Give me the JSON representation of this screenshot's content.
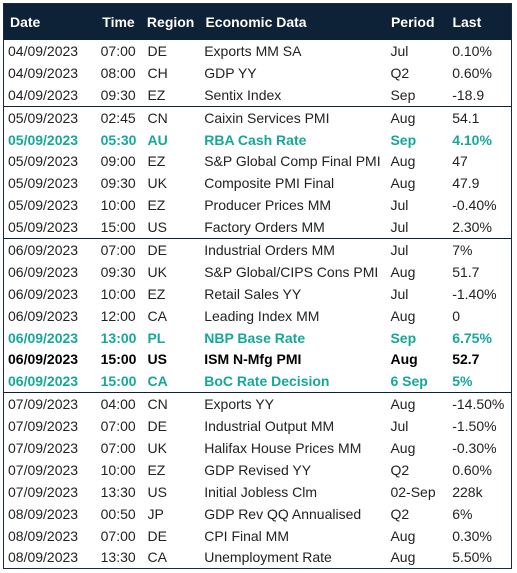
{
  "headers": [
    "Date",
    "Time",
    "Region",
    "Economic Data",
    "Period",
    "Last"
  ],
  "rows": [
    {
      "date": "04/09/2023",
      "time": "07:00",
      "region": "DE",
      "econ": "Exports MM SA",
      "period": "Jul",
      "last": "0.10%",
      "style": "",
      "sep": false
    },
    {
      "date": "04/09/2023",
      "time": "08:00",
      "region": "CH",
      "econ": "GDP YY",
      "period": "Q2",
      "last": "0.60%",
      "style": "",
      "sep": false
    },
    {
      "date": "04/09/2023",
      "time": "09:30",
      "region": "EZ",
      "econ": "Sentix Index",
      "period": "Sep",
      "last": "-18.9",
      "style": "",
      "sep": false
    },
    {
      "date": "05/09/2023",
      "time": "02:45",
      "region": "CN",
      "econ": "Caixin Services PMI",
      "period": "Aug",
      "last": "54.1",
      "style": "",
      "sep": true
    },
    {
      "date": "05/09/2023",
      "time": "05:30",
      "region": "AU",
      "econ": "RBA Cash Rate",
      "period": "Sep",
      "last": "4.10%",
      "style": "green",
      "sep": false
    },
    {
      "date": "05/09/2023",
      "time": "09:00",
      "region": "EZ",
      "econ": "S&P Global Comp Final PMI",
      "period": "Aug",
      "last": "47",
      "style": "",
      "sep": false
    },
    {
      "date": "05/09/2023",
      "time": "09:30",
      "region": "UK",
      "econ": "Composite PMI Final",
      "period": "Aug",
      "last": "47.9",
      "style": "",
      "sep": false
    },
    {
      "date": "05/09/2023",
      "time": "10:00",
      "region": "EZ",
      "econ": "Producer Prices MM",
      "period": "Jul",
      "last": "-0.40%",
      "style": "",
      "sep": false
    },
    {
      "date": "05/09/2023",
      "time": "15:00",
      "region": "US",
      "econ": "Factory Orders MM",
      "period": "Jul",
      "last": "2.30%",
      "style": "",
      "sep": false
    },
    {
      "date": "06/09/2023",
      "time": "07:00",
      "region": "DE",
      "econ": "Industrial Orders MM",
      "period": "Jul",
      "last": "7%",
      "style": "",
      "sep": true
    },
    {
      "date": "06/09/2023",
      "time": "09:30",
      "region": "UK",
      "econ": "S&P Global/CIPS Cons PMI",
      "period": "Aug",
      "last": "51.7",
      "style": "",
      "sep": false
    },
    {
      "date": "06/09/2023",
      "time": "10:00",
      "region": "EZ",
      "econ": "Retail Sales YY",
      "period": "Jul",
      "last": "-1.40%",
      "style": "",
      "sep": false
    },
    {
      "date": "06/09/2023",
      "time": "12:00",
      "region": "CA",
      "econ": "Leading Index MM",
      "period": "Aug",
      "last": "0",
      "style": "",
      "sep": false
    },
    {
      "date": "06/09/2023",
      "time": "13:00",
      "region": "PL",
      "econ": "NBP Base Rate",
      "period": "Sep",
      "last": "6.75%",
      "style": "green",
      "sep": false
    },
    {
      "date": "06/09/2023",
      "time": "15:00",
      "region": "US",
      "econ": "ISM N-Mfg PMI",
      "period": "Aug",
      "last": "52.7",
      "style": "bold",
      "sep": false
    },
    {
      "date": "06/09/2023",
      "time": "15:00",
      "region": "CA",
      "econ": "BoC Rate Decision",
      "period": "6 Sep",
      "last": "5%",
      "style": "green",
      "sep": false
    },
    {
      "date": "07/09/2023",
      "time": "04:00",
      "region": "CN",
      "econ": "Exports YY",
      "period": "Aug",
      "last": "-14.50%",
      "style": "",
      "sep": true
    },
    {
      "date": "07/09/2023",
      "time": "07:00",
      "region": "DE",
      "econ": "Industrial Output MM",
      "period": "Jul",
      "last": "-1.50%",
      "style": "",
      "sep": false
    },
    {
      "date": "07/09/2023",
      "time": "07:00",
      "region": "UK",
      "econ": "Halifax House Prices MM",
      "period": "Aug",
      "last": "-0.30%",
      "style": "",
      "sep": false
    },
    {
      "date": "07/09/2023",
      "time": "10:00",
      "region": "EZ",
      "econ": "GDP Revised YY",
      "period": "Q2",
      "last": "0.60%",
      "style": "",
      "sep": false
    },
    {
      "date": "07/09/2023",
      "time": "13:30",
      "region": "US",
      "econ": "Initial Jobless Clm",
      "period": "02-Sep",
      "last": "228k",
      "style": "",
      "sep": false
    },
    {
      "date": "08/09/2023",
      "time": "00:50",
      "region": "JP",
      "econ": "GDP Rev QQ Annualised",
      "period": "Q2",
      "last": "6%",
      "style": "",
      "sep": false
    },
    {
      "date": "08/09/2023",
      "time": "07:00",
      "region": "DE",
      "econ": "CPI Final MM",
      "period": "Aug",
      "last": "0.30%",
      "style": "",
      "sep": false
    },
    {
      "date": "08/09/2023",
      "time": "13:30",
      "region": "CA",
      "econ": "Unemployment Rate",
      "period": "Aug",
      "last": "5.50%",
      "style": "",
      "sep": false
    }
  ],
  "colors": {
    "header_bg": "#0d2137",
    "highlight": "#15a898"
  }
}
